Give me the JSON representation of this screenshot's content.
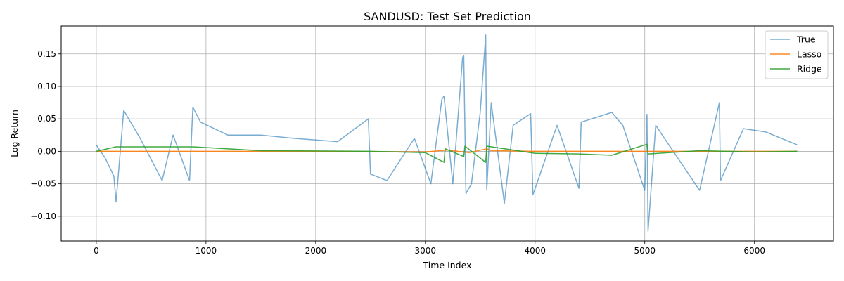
{
  "chart_data": {
    "type": "line",
    "title": "SANDUSD: Test Set Prediction",
    "xlabel": "Time Index",
    "ylabel": "Log Return",
    "xlim": [
      -320,
      6720
    ],
    "ylim": [
      -0.138,
      0.193
    ],
    "x_ticks": [
      0,
      1000,
      2000,
      3000,
      4000,
      5000,
      6000
    ],
    "y_ticks": [
      -0.1,
      -0.05,
      0.0,
      0.05,
      0.1,
      0.15
    ],
    "x_tick_labels": [
      "0",
      "1000",
      "2000",
      "3000",
      "4000",
      "5000",
      "6000"
    ],
    "y_tick_labels": [
      "−0.10",
      "−0.05",
      "0.00",
      "0.05",
      "0.10",
      "0.15"
    ],
    "grid": true,
    "legend_position": "top-right",
    "series": [
      {
        "name": "True",
        "color": "#1f77b4",
        "x": [
          0,
          80,
          160,
          180,
          250,
          400,
          600,
          700,
          850,
          880,
          950,
          1200,
          1500,
          1800,
          2200,
          2480,
          2500,
          2650,
          2900,
          3050,
          3150,
          3170,
          3250,
          3340,
          3350,
          3370,
          3420,
          3500,
          3550,
          3560,
          3600,
          3720,
          3800,
          3960,
          3980,
          4200,
          4400,
          4420,
          4700,
          4800,
          5000,
          5020,
          5030,
          5100,
          5500,
          5680,
          5690,
          5900,
          6100,
          6390
        ],
        "y": [
          0.01,
          -0.01,
          -0.038,
          -0.078,
          0.063,
          0.02,
          -0.045,
          0.025,
          -0.045,
          0.068,
          0.045,
          0.025,
          0.025,
          0.02,
          0.015,
          0.05,
          -0.035,
          -0.045,
          0.02,
          -0.05,
          0.08,
          0.085,
          -0.05,
          0.145,
          0.147,
          -0.065,
          -0.05,
          0.06,
          0.179,
          -0.06,
          0.075,
          -0.08,
          0.04,
          0.058,
          -0.067,
          0.04,
          -0.057,
          0.045,
          0.06,
          0.04,
          -0.06,
          0.057,
          -0.123,
          0.04,
          -0.06,
          0.075,
          -0.045,
          0.035,
          0.03,
          0.01
        ]
      },
      {
        "name": "Lasso",
        "color": "#ff7f0e",
        "x": [
          0,
          1000,
          2000,
          3000,
          3200,
          3400,
          3560,
          3600,
          4000,
          5000,
          6000,
          6390
        ],
        "y": [
          0.0,
          0.0,
          0.0,
          -0.001,
          0.002,
          -0.002,
          0.004,
          0.001,
          0.0,
          0.0,
          0.0,
          0.0
        ]
      },
      {
        "name": "Ridge",
        "color": "#2ca02c",
        "x": [
          0,
          180,
          880,
          1500,
          2500,
          3000,
          3170,
          3180,
          3350,
          3360,
          3550,
          3560,
          4000,
          4400,
          4700,
          5020,
          5030,
          5500,
          6000,
          6390
        ],
        "y": [
          0.0,
          0.007,
          0.007,
          0.001,
          0.0,
          -0.002,
          -0.017,
          0.004,
          -0.008,
          0.008,
          -0.017,
          0.008,
          -0.003,
          -0.004,
          -0.006,
          0.011,
          -0.004,
          0.001,
          -0.001,
          0.0
        ]
      }
    ]
  }
}
